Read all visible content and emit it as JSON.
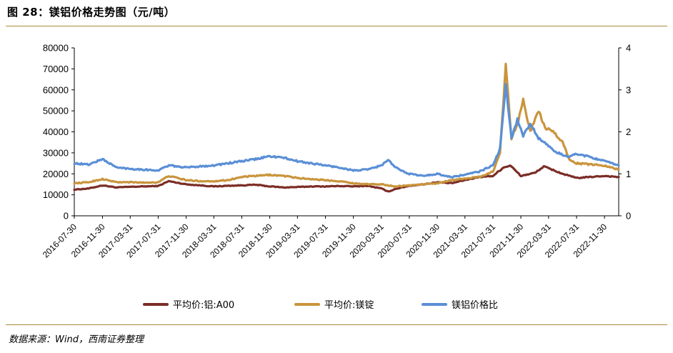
{
  "header": {
    "title": "图 28：镁铝价格走势图（元/吨）"
  },
  "footer": {
    "source": "数据来源：Wind，西南证券整理"
  },
  "chart_data": {
    "type": "line",
    "title": "镁铝价格走势图（元/吨）",
    "xlabel": "",
    "ylabel": "",
    "y_left_lim": [
      0,
      80000
    ],
    "y_left_ticks": [
      "0",
      "10000",
      "20000",
      "30000",
      "40000",
      "50000",
      "60000",
      "70000",
      "80000"
    ],
    "y_right_lim": [
      0,
      4
    ],
    "y_right_ticks": [
      "0",
      "1",
      "2",
      "3",
      "4"
    ],
    "x_ticks": [
      "2016-07-30",
      "2016-11-30",
      "2017-03-31",
      "2017-07-31",
      "2017-11-30",
      "2018-03-31",
      "2018-07-31",
      "2018-11-30",
      "2019-03-31",
      "2019-07-31",
      "2019-11-30",
      "2020-03-31",
      "2020-07-31",
      "2020-11-30",
      "2021-03-31",
      "2021-07-31",
      "2021-11-30",
      "2022-03-31",
      "2022-07-31",
      "2022-11-30"
    ],
    "x_range": [
      "2016-07-30",
      "2023-01-31"
    ],
    "grid": false,
    "legend_position": "bottom",
    "series": [
      {
        "name": "平均价:铝:A00",
        "axis": "left",
        "color": "#7b2d26",
        "x": [
          "2016-07-30",
          "2016-09-30",
          "2016-11-30",
          "2017-01-31",
          "2017-03-31",
          "2017-05-31",
          "2017-07-31",
          "2017-09-15",
          "2017-11-30",
          "2018-01-31",
          "2018-03-31",
          "2018-05-31",
          "2018-07-31",
          "2018-09-30",
          "2018-11-30",
          "2019-01-31",
          "2019-03-31",
          "2019-05-31",
          "2019-07-31",
          "2019-09-30",
          "2019-11-30",
          "2020-01-31",
          "2020-03-31",
          "2020-04-30",
          "2020-05-31",
          "2020-07-31",
          "2020-09-30",
          "2020-11-30",
          "2021-01-31",
          "2021-03-31",
          "2021-05-31",
          "2021-07-31",
          "2021-09-15",
          "2021-10-15",
          "2021-11-30",
          "2022-01-31",
          "2022-03-10",
          "2022-04-15",
          "2022-05-31",
          "2022-07-31",
          "2022-09-30",
          "2022-11-30",
          "2023-01-31"
        ],
        "values": [
          12500,
          13000,
          14500,
          13500,
          13800,
          14000,
          14200,
          16500,
          15000,
          14500,
          14000,
          14300,
          14500,
          14800,
          14000,
          13500,
          13700,
          14000,
          14000,
          14200,
          14000,
          14300,
          13000,
          11500,
          12800,
          14300,
          15000,
          16000,
          15500,
          17000,
          18500,
          19000,
          23000,
          24000,
          19000,
          20500,
          23500,
          22000,
          20000,
          18000,
          18500,
          19000,
          18500
        ]
      },
      {
        "name": "平均价:镁锭",
        "axis": "left",
        "color": "#c9953c",
        "x": [
          "2016-07-30",
          "2016-09-30",
          "2016-11-30",
          "2017-01-31",
          "2017-03-31",
          "2017-05-31",
          "2017-07-31",
          "2017-09-15",
          "2017-11-30",
          "2018-01-31",
          "2018-03-31",
          "2018-05-31",
          "2018-07-31",
          "2018-09-30",
          "2018-11-30",
          "2019-01-31",
          "2019-03-31",
          "2019-05-31",
          "2019-07-31",
          "2019-09-30",
          "2019-11-30",
          "2020-01-31",
          "2020-03-31",
          "2020-05-31",
          "2020-07-31",
          "2020-09-30",
          "2020-11-30",
          "2021-01-31",
          "2021-03-31",
          "2021-05-31",
          "2021-07-31",
          "2021-08-31",
          "2021-09-25",
          "2021-10-20",
          "2021-11-15",
          "2021-12-10",
          "2022-01-10",
          "2022-02-15",
          "2022-03-15",
          "2022-04-20",
          "2022-05-31",
          "2022-06-30",
          "2022-07-31",
          "2022-09-30",
          "2022-11-30",
          "2023-01-31"
        ],
        "values": [
          15500,
          16000,
          17500,
          16000,
          16000,
          15800,
          16000,
          19000,
          17000,
          16500,
          16500,
          17000,
          18500,
          19000,
          19500,
          19000,
          18000,
          17500,
          17000,
          16500,
          15500,
          15000,
          15000,
          14000,
          14500,
          15000,
          15500,
          17000,
          17800,
          18500,
          21000,
          30000,
          72000,
          37000,
          44000,
          55000,
          40000,
          50000,
          42000,
          40000,
          35000,
          27000,
          25000,
          24500,
          24000,
          22000
        ]
      },
      {
        "name": "镁铝价格比",
        "axis": "right",
        "color": "#5a8fd6",
        "x": [
          "2016-07-30",
          "2016-09-30",
          "2016-11-30",
          "2017-01-31",
          "2017-03-31",
          "2017-05-31",
          "2017-07-31",
          "2017-09-15",
          "2017-11-30",
          "2018-01-31",
          "2018-03-31",
          "2018-05-31",
          "2018-07-31",
          "2018-09-30",
          "2018-11-30",
          "2019-01-31",
          "2019-03-31",
          "2019-05-31",
          "2019-07-31",
          "2019-09-30",
          "2019-11-30",
          "2020-01-31",
          "2020-03-31",
          "2020-04-30",
          "2020-05-31",
          "2020-07-31",
          "2020-09-30",
          "2020-11-30",
          "2021-01-31",
          "2021-03-31",
          "2021-05-31",
          "2021-07-31",
          "2021-08-31",
          "2021-09-25",
          "2021-10-20",
          "2021-11-15",
          "2021-12-10",
          "2022-01-10",
          "2022-02-15",
          "2022-03-15",
          "2022-04-20",
          "2022-05-31",
          "2022-06-30",
          "2022-07-31",
          "2022-09-30",
          "2022-11-30",
          "2023-01-31"
        ],
        "values": [
          1.25,
          1.22,
          1.35,
          1.15,
          1.12,
          1.1,
          1.08,
          1.2,
          1.15,
          1.18,
          1.2,
          1.25,
          1.3,
          1.35,
          1.42,
          1.38,
          1.3,
          1.25,
          1.2,
          1.15,
          1.08,
          1.1,
          1.2,
          1.33,
          1.15,
          1.0,
          0.95,
          1.0,
          0.92,
          0.98,
          1.05,
          1.2,
          1.6,
          3.1,
          1.85,
          2.3,
          1.9,
          2.2,
          1.85,
          1.75,
          1.55,
          1.45,
          1.4,
          1.48,
          1.4,
          1.3,
          1.2
        ]
      }
    ]
  }
}
